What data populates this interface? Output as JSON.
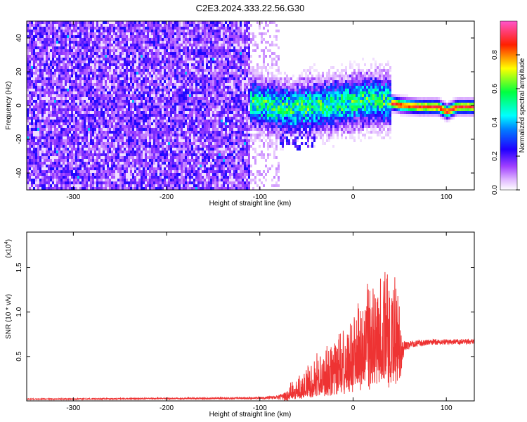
{
  "title": "C2E3.2024.333.22.56.G30",
  "chart_data": [
    {
      "type": "heatmap",
      "xlabel": "Height of straight line (km)",
      "ylabel": "Frequency (Hz)",
      "xlim": [
        -350,
        130
      ],
      "ylim": [
        -50,
        50
      ],
      "x_ticks": [
        -300,
        -200,
        -100,
        0,
        100
      ],
      "y_ticks": [
        -40,
        -20,
        0,
        20,
        40
      ],
      "colorbar": {
        "label": "Normalized spectral amplitude",
        "range": [
          0,
          1
        ],
        "ticks": [
          0.0,
          0.2,
          0.4,
          0.6,
          0.8
        ],
        "colors": [
          "#ffffff",
          "#cc88ff",
          "#8800ff",
          "#0000ff",
          "#00ffff",
          "#00ff00",
          "#ffff00",
          "#ff0000",
          "#ff66cc"
        ]
      },
      "features": {
        "noise_region_x": [
          -350,
          -80
        ],
        "signal_onset_x": -112,
        "signal_trace": [
          {
            "x": -112,
            "y": 3
          },
          {
            "x": -90,
            "y": 0
          },
          {
            "x": -70,
            "y": -1
          },
          {
            "x": -50,
            "y": 0
          },
          {
            "x": -30,
            "y": 1
          },
          {
            "x": -10,
            "y": 2
          },
          {
            "x": 0,
            "y": 3
          },
          {
            "x": 20,
            "y": 4
          },
          {
            "x": 35,
            "y": 3
          },
          {
            "x": 50,
            "y": 1
          },
          {
            "x": 70,
            "y": 0
          },
          {
            "x": 90,
            "y": 0
          },
          {
            "x": 100,
            "y": -3
          },
          {
            "x": 110,
            "y": 0
          },
          {
            "x": 130,
            "y": 0
          }
        ]
      }
    },
    {
      "type": "line",
      "xlabel": "Height of straight line (km)",
      "ylabel": "SNR (10 * v/v)",
      "scale_note": "(x10",
      "scale_exp": "4",
      "scale_close": ")",
      "xlim": [
        -350,
        130
      ],
      "ylim": [
        0,
        1.9
      ],
      "x_ticks": [
        -300,
        -200,
        -100,
        0,
        100
      ],
      "y_ticks": [
        0.5,
        1.0,
        1.5
      ],
      "y_tick_labels": [
        "0.5",
        "1.0",
        "1.5"
      ],
      "series_color": "#ee3333",
      "envelope": [
        {
          "x": -350,
          "base": 0.02,
          "amp": 0.01
        },
        {
          "x": -110,
          "base": 0.03,
          "amp": 0.02
        },
        {
          "x": -80,
          "base": 0.04,
          "amp": 0.04
        },
        {
          "x": -60,
          "base": 0.06,
          "amp": 0.25
        },
        {
          "x": -45,
          "base": 0.1,
          "amp": 0.4
        },
        {
          "x": -30,
          "base": 0.15,
          "amp": 0.5
        },
        {
          "x": -15,
          "base": 0.2,
          "amp": 0.6
        },
        {
          "x": 0,
          "base": 0.3,
          "amp": 0.8
        },
        {
          "x": 15,
          "base": 0.35,
          "amp": 1.0
        },
        {
          "x": 30,
          "base": 0.4,
          "amp": 1.2
        },
        {
          "x": 40,
          "base": 0.45,
          "amp": 1.35
        },
        {
          "x": 50,
          "base": 0.5,
          "amp": 0.7
        },
        {
          "x": 55,
          "base": 0.62,
          "amp": 0.1
        },
        {
          "x": 80,
          "base": 0.66,
          "amp": 0.06
        },
        {
          "x": 130,
          "base": 0.67,
          "amp": 0.06
        }
      ]
    }
  ]
}
